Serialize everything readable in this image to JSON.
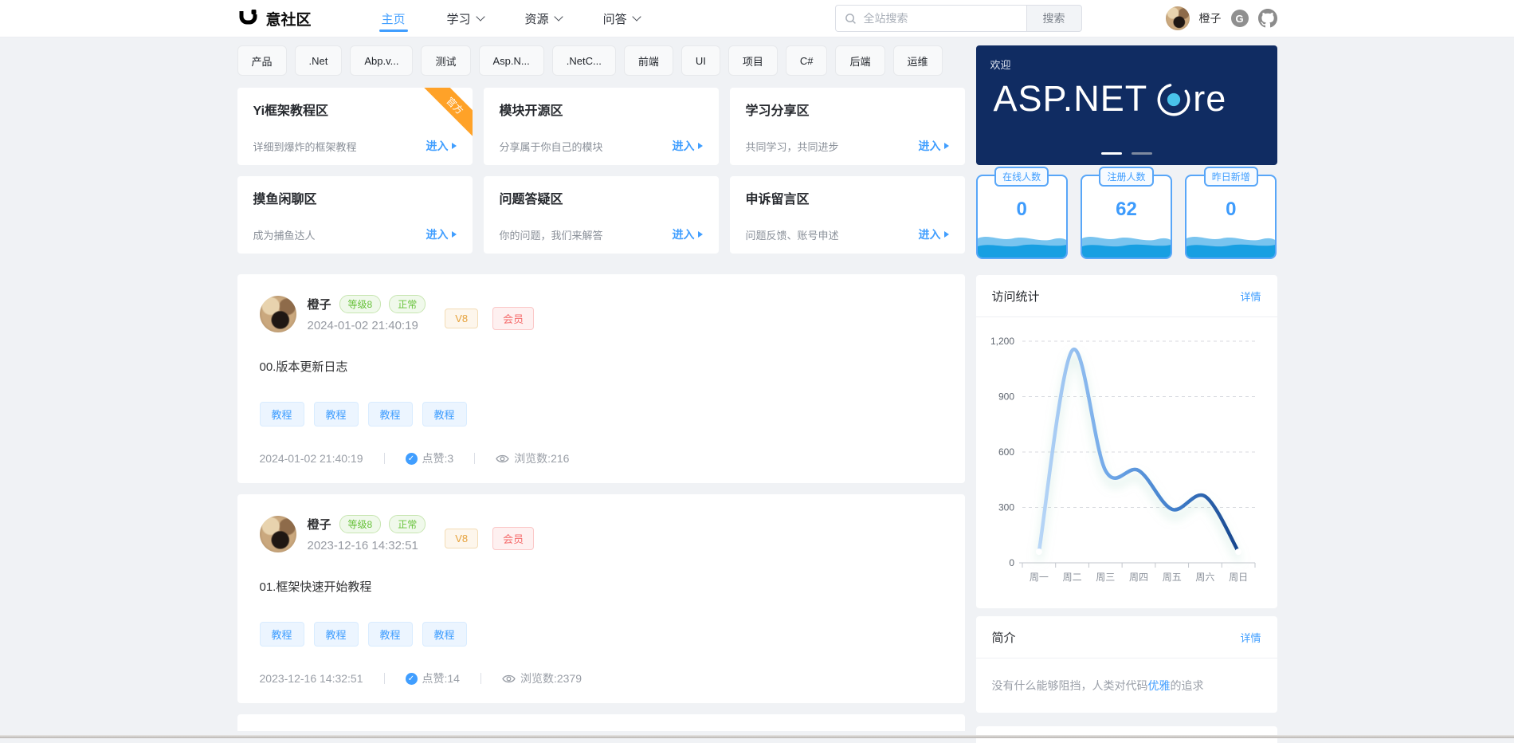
{
  "navbar": {
    "brand": "意社区",
    "nav": [
      {
        "label": "主页",
        "active": true
      },
      {
        "label": "学习",
        "dropdown": true
      },
      {
        "label": "资源",
        "dropdown": true
      },
      {
        "label": "问答",
        "dropdown": true
      }
    ],
    "search": {
      "placeholder": "全站搜索",
      "button": "搜索"
    },
    "user": {
      "name": "橙子"
    }
  },
  "icons": {
    "like_check": "✓",
    "gitee": "G"
  },
  "tags": [
    "产品",
    ".Net",
    "Abp.v...",
    "测试",
    "Asp.N...",
    ".NetC...",
    "前端",
    "UI",
    "项目",
    "C#",
    "后端",
    "运维"
  ],
  "zones": [
    {
      "title": "Yi框架教程区",
      "desc": "详细到爆炸的框架教程",
      "enter": "进入",
      "ribbon": "官方"
    },
    {
      "title": "模块开源区",
      "desc": "分享属于你自己的模块",
      "enter": "进入"
    },
    {
      "title": "学习分享区",
      "desc": "共同学习，共同进步",
      "enter": "进入"
    },
    {
      "title": "摸鱼闲聊区",
      "desc": "成为捕鱼达人",
      "enter": "进入"
    },
    {
      "title": "问题答疑区",
      "desc": "你的问题，我们来解答",
      "enter": "进入"
    },
    {
      "title": "申诉留言区",
      "desc": "问题反馈、账号申述",
      "enter": "进入"
    }
  ],
  "posts": [
    {
      "author": "橙子",
      "level": "等级8",
      "status": "正常",
      "vip": "V8",
      "member": "会员",
      "datetime": "2024-01-02 21:40:19",
      "title": "00.版本更新日志",
      "tags": [
        "教程",
        "教程",
        "教程",
        "教程"
      ],
      "likes_label": "点赞:3",
      "views_label": "浏览数:216"
    },
    {
      "author": "橙子",
      "level": "等级8",
      "status": "正常",
      "vip": "V8",
      "member": "会员",
      "datetime": "2023-12-16 14:32:51",
      "title": "01.框架快速开始教程",
      "tags": [
        "教程",
        "教程",
        "教程",
        "教程"
      ],
      "likes_label": "点赞:14",
      "views_label": "浏览数:2379"
    }
  ],
  "sidebar": {
    "banner": {
      "welcome": "欢迎",
      "title": "ASP.NET Core",
      "title_parts": {
        "left": "ASP.NET",
        "right": "re"
      },
      "bg_color": "#102c62",
      "dot_color": "#49c3ea"
    },
    "stats": [
      {
        "label": "在线人数",
        "value": "0"
      },
      {
        "label": "注册人数",
        "value": "62"
      },
      {
        "label": "昨日新增",
        "value": "0"
      }
    ],
    "visits": {
      "title": "访问统计",
      "more": "详情"
    },
    "intro": {
      "title": "简介",
      "more": "详情",
      "text_before": "没有什么能够阻挡，人类对代码",
      "highlight": "优雅",
      "text_after": "的追求"
    }
  },
  "theme": {
    "primary": "#409eff",
    "success": "#67c23a",
    "warning": "#e6a23c",
    "danger": "#f56c6c"
  },
  "chart_data": {
    "type": "line",
    "title": "访问统计",
    "categories": [
      "周一",
      "周二",
      "周三",
      "周四",
      "周五",
      "周六",
      "周日"
    ],
    "values": [
      60,
      1150,
      500,
      500,
      290,
      360,
      60
    ],
    "ylim": [
      0,
      1200
    ],
    "yticks": [
      {
        "value": 0,
        "label": "0"
      },
      {
        "value": 300,
        "label": "300"
      },
      {
        "value": 600,
        "label": "600"
      },
      {
        "value": 900,
        "label": "900"
      },
      {
        "value": 1200,
        "label": "1,200"
      }
    ],
    "grid": "dashed",
    "smooth": true,
    "legend": "none",
    "line_gradient": [
      "#b9d7f7",
      "#17458c"
    ]
  }
}
